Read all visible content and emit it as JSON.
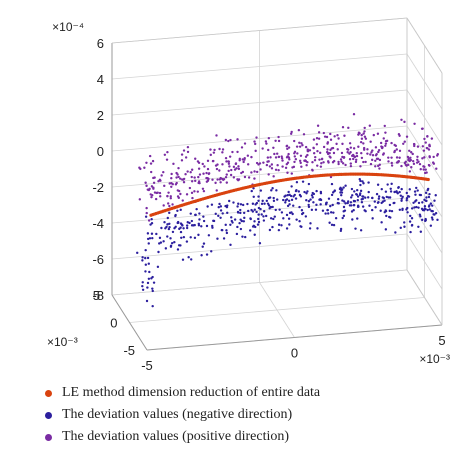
{
  "chart_data": {
    "type": "scatter",
    "projection": "3d",
    "axes": {
      "x": {
        "range": [
          -5,
          5
        ],
        "ticks": [
          "-5",
          "0",
          "5"
        ],
        "multiplier": "×10⁻³"
      },
      "y": {
        "range": [
          -5,
          5
        ],
        "ticks": [
          "-5",
          "0",
          "5"
        ],
        "multiplier": "×10⁻³"
      },
      "z": {
        "range": [
          -8,
          6
        ],
        "ticks": [
          "-8",
          "-6",
          "-4",
          "-2",
          "0",
          "2",
          "4",
          "6"
        ],
        "multiplier": "×10⁻⁴"
      }
    },
    "grid": true,
    "legend_position": "bottom-left",
    "series": [
      {
        "name": "LE method dimension reduction of entire data",
        "color": "#d9430f",
        "shape": "thin curve"
      },
      {
        "name": "The deviation values (negative direction)",
        "color": "#2c1f9e",
        "shape": "scattered band below curve"
      },
      {
        "name": "The deviation values (positive direction)",
        "color": "#7a2ca3",
        "shape": "scattered band above curve"
      }
    ]
  }
}
